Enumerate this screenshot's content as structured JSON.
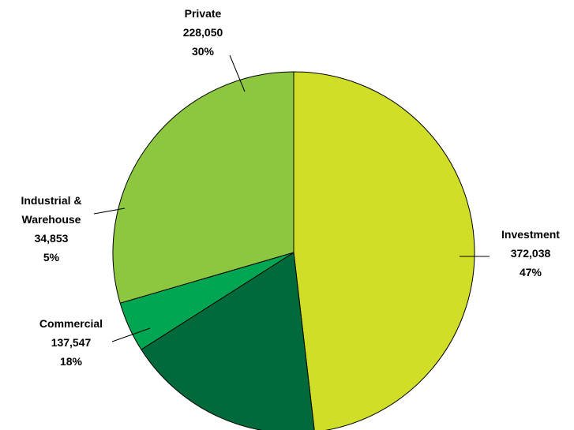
{
  "chart_data": {
    "type": "pie",
    "title": "",
    "start_angle_deg": 270,
    "direction": "clockwise",
    "slices": [
      {
        "label": [
          "Investment"
        ],
        "value": 372038,
        "value_text": "372,038",
        "percent_text": "47%",
        "color": "#D1DE27"
      },
      {
        "label": [
          "Commercial"
        ],
        "value": 137547,
        "value_text": "137,547",
        "percent_text": "18%",
        "color": "#006A3B"
      },
      {
        "label": [
          "Industrial &",
          "Warehouse"
        ],
        "value": 34853,
        "value_text": "34,853",
        "percent_text": "5%",
        "color": "#00A651"
      },
      {
        "label": [
          "Private"
        ],
        "value": 228050,
        "value_text": "228,050",
        "percent_text": "30%",
        "color": "#8DC63F"
      }
    ]
  }
}
